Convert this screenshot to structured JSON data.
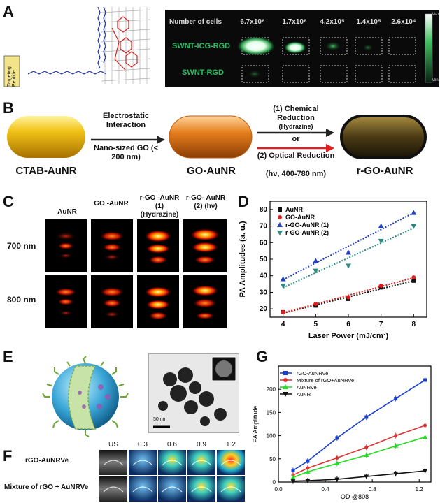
{
  "panels": {
    "A": {
      "label": "A",
      "targeting_peptide": "Targeting Peptide",
      "number_of_cells_label": "Number of cells",
      "cell_counts": [
        "6.7x10⁶",
        "1.7x10⁶",
        "4.2x10⁵",
        "1.4x10⁵",
        "2.6x10⁴"
      ],
      "rows": [
        "SWNT-ICG-RGD",
        "SWNT-RGD"
      ],
      "scale_max": "Max",
      "scale_min": "Min"
    },
    "B": {
      "label": "B",
      "step1_top": "Electrostatic Interaction",
      "step1_bottom": "Nano-sized GO (< 200 nm)",
      "step2_top": "(1) Chemical Reduction",
      "step2_top_sub": "(Hydrazine)",
      "step2_or": "or",
      "step2_bottom": "(2) Optical Reduction",
      "step2_bottom_sub": "(hν, 400-780 nm)",
      "particles": [
        "CTAB-AuNR",
        "GO-AuNR",
        "r-GO-AuNR"
      ]
    },
    "C": {
      "label": "C",
      "columns": [
        "AuNR",
        "GO -AuNR",
        "r-GO -AuNR (1) (Hydrazine)",
        "r-GO- AuNR (2) (hν)"
      ],
      "rows": [
        "700 nm",
        "800 nm"
      ]
    },
    "E": {
      "label": "E",
      "scale_bar": "50 nm"
    },
    "F": {
      "label": "F",
      "columns": [
        "US",
        "0.3",
        "0.6",
        "0.9",
        "1.2"
      ],
      "rows": [
        "rGO-AuNRVe",
        "Mixture of rGO + AuNRVe"
      ]
    },
    "D": {
      "label": "D"
    },
    "G": {
      "label": "G"
    }
  },
  "chart_data": [
    {
      "id": "D",
      "type": "scatter",
      "xlabel": "Laser Power (mJ/cm²)",
      "ylabel": "PA Amplitudes (a. u.)",
      "xlim": [
        3.6,
        8.4
      ],
      "ylim": [
        15,
        85
      ],
      "xticks": [
        4,
        5,
        6,
        7,
        8
      ],
      "yticks": [
        20,
        30,
        40,
        50,
        60,
        70,
        80
      ],
      "legend": "top-left",
      "series": [
        {
          "name": "AuNR",
          "color": "#111111",
          "marker": "square",
          "x": [
            4,
            5,
            6,
            7,
            8
          ],
          "y": [
            18,
            22,
            26,
            33,
            37
          ]
        },
        {
          "name": "GO-AuNR",
          "color": "#e02020",
          "marker": "circle",
          "x": [
            4,
            5,
            6,
            7,
            8
          ],
          "y": [
            18,
            23,
            27,
            34,
            39
          ]
        },
        {
          "name": "r-GO-AuNR (1)",
          "color": "#2040c0",
          "marker": "triangle-up",
          "x": [
            4,
            5,
            6,
            7,
            8
          ],
          "y": [
            38,
            49,
            54,
            70,
            78
          ]
        },
        {
          "name": "r-GO-AuNR (2)",
          "color": "#2a8a80",
          "marker": "triangle-down",
          "x": [
            4,
            5,
            6,
            7,
            8
          ],
          "y": [
            34,
            43,
            46,
            61,
            70
          ]
        }
      ]
    },
    {
      "id": "G",
      "type": "line",
      "xlabel": "OD @808",
      "ylabel": "PA Amplitude",
      "xlim": [
        0,
        1.3
      ],
      "ylim": [
        0,
        250
      ],
      "xticks": [
        0.0,
        0.4,
        0.8,
        1.2
      ],
      "yticks": [
        0,
        50,
        100,
        150,
        200
      ],
      "legend": "top-left",
      "series": [
        {
          "name": "rGO-AuNRVe",
          "color": "#1a3fd0",
          "marker": "square",
          "x": [
            0.125,
            0.25,
            0.5,
            0.75,
            1.0,
            1.25
          ],
          "y": [
            25,
            45,
            95,
            140,
            180,
            220
          ]
        },
        {
          "name": "Mixture of rGO+AuNRVe",
          "color": "#e03030",
          "marker": "circle",
          "x": [
            0.125,
            0.25,
            0.5,
            0.75,
            1.0,
            1.25
          ],
          "y": [
            15,
            30,
            52,
            75,
            100,
            122
          ]
        },
        {
          "name": "AuNRVe",
          "color": "#22dd22",
          "marker": "triangle-up",
          "x": [
            0.125,
            0.25,
            0.5,
            0.75,
            1.0,
            1.25
          ],
          "y": [
            10,
            22,
            40,
            58,
            78,
            97
          ]
        },
        {
          "name": "AuNR",
          "color": "#111111",
          "marker": "triangle-down",
          "x": [
            0.125,
            0.25,
            0.5,
            0.75,
            1.0,
            1.25
          ],
          "y": [
            2,
            3,
            6,
            12,
            18,
            24
          ]
        }
      ]
    }
  ]
}
